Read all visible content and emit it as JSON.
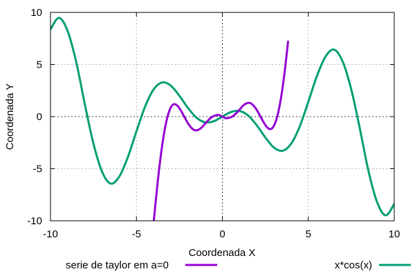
{
  "chart_data": {
    "type": "line",
    "title": "",
    "xlabel": "Coordenada X",
    "ylabel": "Coordenada Y",
    "xlim": [
      -10,
      10
    ],
    "ylim": [
      -10,
      10
    ],
    "x_ticks": [
      -10,
      -5,
      0,
      5,
      10
    ],
    "x_tick_labels": [
      "-10",
      "-5",
      "0",
      "5",
      "10"
    ],
    "y_ticks": [
      -10,
      -5,
      0,
      5,
      10
    ],
    "y_tick_labels": [
      "-10",
      "-5",
      "0",
      "5",
      "10"
    ],
    "grid": true,
    "zero_axes": true,
    "legend_position": "bottom",
    "series": [
      {
        "name": "serie de taylor em a=0",
        "color": "#9400d3",
        "x": [
          -4.0,
          -3.8,
          -3.6,
          -3.4,
          -3.2,
          -3.0,
          -2.8,
          -2.6,
          -2.4,
          -2.2,
          -2.0,
          -1.8,
          -1.6,
          -1.4,
          -1.2,
          -1.0,
          -0.8,
          -0.6,
          -0.4,
          -0.2,
          0.0,
          0.2,
          0.4,
          0.6,
          0.8,
          1.0,
          1.2,
          1.4,
          1.6,
          1.8,
          2.0,
          2.2,
          2.4,
          2.6,
          2.8,
          3.0,
          3.2,
          3.4,
          3.6,
          3.8,
          3.82
        ],
        "y": [
          -10.18,
          -6.86,
          -3.98,
          -1.68,
          -0.06,
          0.88,
          1.2,
          1.02,
          0.54,
          -0.06,
          -0.64,
          -1.08,
          -1.31,
          -1.27,
          -1.04,
          -0.67,
          -0.31,
          -0.03,
          0.11,
          0.15,
          0.0,
          -0.15,
          -0.11,
          0.03,
          0.31,
          0.67,
          1.04,
          1.27,
          1.31,
          1.08,
          0.64,
          0.06,
          -0.54,
          -1.02,
          -1.2,
          -0.88,
          0.06,
          1.68,
          3.98,
          6.86,
          7.19
        ]
      },
      {
        "name": "x*cos(x)",
        "color": "#009e73",
        "x": [
          -10.0,
          -9.5,
          -9.0,
          -8.5,
          -8.0,
          -7.5,
          -7.0,
          -6.5,
          -6.0,
          -5.5,
          -5.0,
          -4.5,
          -4.0,
          -3.5,
          -3.0,
          -2.5,
          -2.0,
          -1.5,
          -1.0,
          -0.5,
          0.0,
          0.5,
          1.0,
          1.5,
          2.0,
          2.5,
          3.0,
          3.5,
          4.0,
          4.5,
          5.0,
          5.5,
          6.0,
          6.5,
          7.0,
          7.5,
          8.0,
          8.5,
          9.0,
          9.5,
          10.0
        ],
        "y": [
          8.39,
          9.48,
          8.2,
          5.22,
          1.16,
          -2.6,
          -5.28,
          -6.43,
          -5.76,
          -3.89,
          -1.42,
          0.95,
          2.61,
          3.28,
          2.97,
          2.0,
          0.83,
          -0.11,
          -0.54,
          -0.44,
          0.0,
          0.44,
          0.54,
          0.11,
          -0.83,
          -2.0,
          -2.97,
          -3.28,
          -2.61,
          -0.95,
          1.42,
          3.89,
          5.76,
          6.43,
          5.28,
          2.6,
          -1.16,
          -5.22,
          -8.2,
          -9.48,
          -8.39
        ]
      }
    ]
  }
}
